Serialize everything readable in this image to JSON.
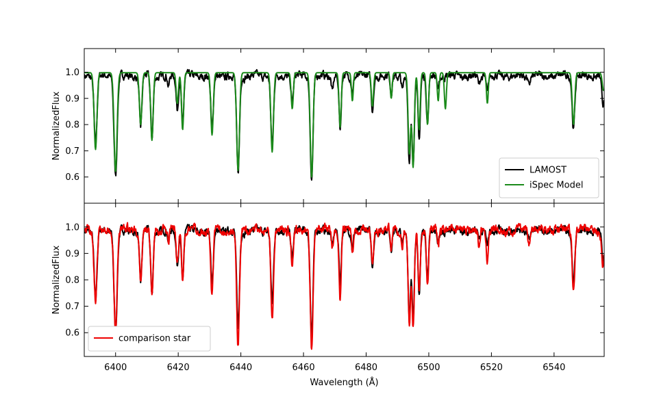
{
  "chart_data": [
    {
      "type": "line",
      "title": "",
      "xlabel": "",
      "ylabel": "NormalizedFlux",
      "xlim": [
        6390,
        6556
      ],
      "ylim": [
        0.5,
        1.09
      ],
      "xticks": [
        6400,
        6420,
        6440,
        6460,
        6480,
        6500,
        6520,
        6540
      ],
      "yticks": [
        0.6,
        0.7,
        0.8,
        0.9,
        1.0
      ],
      "ytick_labels": [
        "0.6",
        "0.7",
        "0.8",
        "0.9",
        "1.0"
      ],
      "legend": {
        "position": "lower-right",
        "entries": [
          "LAMOST",
          "iSpec Model"
        ]
      },
      "grid": false,
      "series": [
        {
          "name": "LAMOST",
          "color": "#000000",
          "continuum": 0.985,
          "noise": 0.014,
          "seed": 7,
          "lines": [
            [
              6393.6,
              0.72,
              0.45
            ],
            [
              6400.0,
              0.61,
              0.5
            ],
            [
              6408.0,
              0.79,
              0.4
            ],
            [
              6411.6,
              0.75,
              0.4
            ],
            [
              6416.9,
              0.94,
              0.3
            ],
            [
              6419.7,
              0.86,
              0.35
            ],
            [
              6421.4,
              0.79,
              0.35
            ],
            [
              6430.8,
              0.77,
              0.4
            ],
            [
              6439.1,
              0.615,
              0.45
            ],
            [
              6450.0,
              0.71,
              0.42
            ],
            [
              6456.4,
              0.88,
              0.35
            ],
            [
              6462.6,
              0.595,
              0.45
            ],
            [
              6469.2,
              0.93,
              0.3
            ],
            [
              6471.7,
              0.78,
              0.35
            ],
            [
              6475.6,
              0.92,
              0.3
            ],
            [
              6482.0,
              0.86,
              0.35
            ],
            [
              6488.0,
              0.92,
              0.3
            ],
            [
              6491.6,
              0.93,
              0.3
            ],
            [
              6493.8,
              0.65,
              0.4
            ],
            [
              6495.0,
              0.66,
              0.38
            ],
            [
              6496.9,
              0.74,
              0.35
            ],
            [
              6499.6,
              0.8,
              0.35
            ],
            [
              6503.0,
              0.93,
              0.3
            ],
            [
              6516.0,
              0.95,
              0.3
            ],
            [
              6518.7,
              0.92,
              0.3
            ],
            [
              6532.0,
              0.95,
              0.3
            ],
            [
              6546.2,
              0.785,
              0.4
            ],
            [
              6555.6,
              0.87,
              0.4
            ]
          ]
        },
        {
          "name": "iSpec Model",
          "color": "#1a8a1a",
          "continuum": 0.998,
          "noise": 0.0,
          "seed": 0,
          "lines": [
            [
              6393.6,
              0.705,
              0.45
            ],
            [
              6400.0,
              0.62,
              0.48
            ],
            [
              6408.0,
              0.8,
              0.4
            ],
            [
              6411.6,
              0.74,
              0.4
            ],
            [
              6419.7,
              0.88,
              0.35
            ],
            [
              6421.4,
              0.78,
              0.35
            ],
            [
              6430.8,
              0.76,
              0.4
            ],
            [
              6439.1,
              0.625,
              0.45
            ],
            [
              6450.0,
              0.695,
              0.42
            ],
            [
              6456.4,
              0.86,
              0.35
            ],
            [
              6462.6,
              0.6,
              0.45
            ],
            [
              6471.7,
              0.79,
              0.35
            ],
            [
              6475.6,
              0.89,
              0.3
            ],
            [
              6482.0,
              0.87,
              0.35
            ],
            [
              6488.0,
              0.9,
              0.3
            ],
            [
              6493.8,
              0.69,
              0.4
            ],
            [
              6495.0,
              0.64,
              0.38
            ],
            [
              6496.9,
              0.78,
              0.35
            ],
            [
              6499.6,
              0.8,
              0.35
            ],
            [
              6503.0,
              0.89,
              0.3
            ],
            [
              6505.3,
              0.86,
              0.32
            ],
            [
              6518.7,
              0.88,
              0.3
            ],
            [
              6546.2,
              0.8,
              0.4
            ],
            [
              6555.8,
              0.93,
              0.4
            ]
          ]
        }
      ]
    },
    {
      "type": "line",
      "title": "",
      "xlabel": "Wavelength  (Å)",
      "ylabel": "NormalizedFlux",
      "xlim": [
        6390,
        6556
      ],
      "ylim": [
        0.51,
        1.09
      ],
      "xticks": [
        6400,
        6420,
        6440,
        6460,
        6480,
        6500,
        6520,
        6540
      ],
      "xtick_labels": [
        "6400",
        "6420",
        "6440",
        "6460",
        "6480",
        "6500",
        "6520",
        "6540"
      ],
      "yticks": [
        0.6,
        0.7,
        0.8,
        0.9,
        1.0
      ],
      "ytick_labels": [
        "0.6",
        "0.7",
        "0.8",
        "0.9",
        "1.0"
      ],
      "legend": {
        "position": "lower-left",
        "entries": [
          "comparison star"
        ]
      },
      "grid": false,
      "series": [
        {
          "name": "",
          "color": "#000000",
          "continuum": 0.985,
          "noise": 0.014,
          "seed": 7,
          "lines": [
            [
              6393.6,
              0.72,
              0.45
            ],
            [
              6400.0,
              0.61,
              0.5
            ],
            [
              6408.0,
              0.79,
              0.4
            ],
            [
              6411.6,
              0.75,
              0.4
            ],
            [
              6416.9,
              0.94,
              0.3
            ],
            [
              6419.7,
              0.86,
              0.35
            ],
            [
              6421.4,
              0.79,
              0.35
            ],
            [
              6430.8,
              0.77,
              0.4
            ],
            [
              6439.1,
              0.615,
              0.45
            ],
            [
              6450.0,
              0.71,
              0.42
            ],
            [
              6456.4,
              0.88,
              0.35
            ],
            [
              6462.6,
              0.595,
              0.45
            ],
            [
              6469.2,
              0.93,
              0.3
            ],
            [
              6471.7,
              0.78,
              0.35
            ],
            [
              6475.6,
              0.92,
              0.3
            ],
            [
              6482.0,
              0.86,
              0.35
            ],
            [
              6488.0,
              0.92,
              0.3
            ],
            [
              6491.6,
              0.93,
              0.3
            ],
            [
              6493.8,
              0.65,
              0.4
            ],
            [
              6495.0,
              0.66,
              0.38
            ],
            [
              6496.9,
              0.74,
              0.35
            ],
            [
              6499.6,
              0.8,
              0.35
            ],
            [
              6503.0,
              0.93,
              0.3
            ],
            [
              6516.0,
              0.95,
              0.3
            ],
            [
              6518.7,
              0.92,
              0.3
            ],
            [
              6532.0,
              0.95,
              0.3
            ],
            [
              6546.2,
              0.785,
              0.4
            ],
            [
              6555.6,
              0.87,
              0.4
            ]
          ]
        },
        {
          "name": "comparison star",
          "color": "#ee0000",
          "continuum": 0.99,
          "noise": 0.016,
          "seed": 19,
          "lines": [
            [
              6393.6,
              0.72,
              0.45
            ],
            [
              6400.0,
              0.6,
              0.5
            ],
            [
              6408.0,
              0.79,
              0.4
            ],
            [
              6411.6,
              0.73,
              0.4
            ],
            [
              6416.9,
              0.93,
              0.3
            ],
            [
              6419.7,
              0.85,
              0.35
            ],
            [
              6421.4,
              0.785,
              0.35
            ],
            [
              6430.8,
              0.735,
              0.4
            ],
            [
              6439.1,
              0.55,
              0.45
            ],
            [
              6450.0,
              0.655,
              0.42
            ],
            [
              6456.4,
              0.85,
              0.35
            ],
            [
              6462.6,
              0.535,
              0.45
            ],
            [
              6469.2,
              0.92,
              0.3
            ],
            [
              6471.7,
              0.725,
              0.35
            ],
            [
              6475.6,
              0.9,
              0.3
            ],
            [
              6482.0,
              0.86,
              0.35
            ],
            [
              6488.0,
              0.91,
              0.3
            ],
            [
              6491.6,
              0.92,
              0.3
            ],
            [
              6493.8,
              0.625,
              0.4
            ],
            [
              6495.0,
              0.61,
              0.38
            ],
            [
              6496.9,
              0.78,
              0.35
            ],
            [
              6499.6,
              0.78,
              0.35
            ],
            [
              6503.0,
              0.92,
              0.3
            ],
            [
              6516.0,
              0.93,
              0.3
            ],
            [
              6518.7,
              0.87,
              0.3
            ],
            [
              6532.0,
              0.93,
              0.3
            ],
            [
              6546.2,
              0.77,
              0.4
            ],
            [
              6555.6,
              0.86,
              0.4
            ]
          ]
        }
      ]
    }
  ]
}
